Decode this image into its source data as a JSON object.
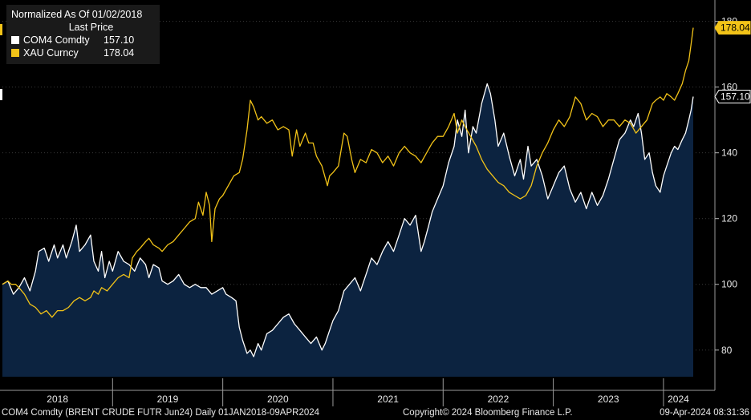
{
  "chart_data": {
    "type": "line",
    "title": "Normalized As Of 01/02/2018",
    "legend_header": "Last Price",
    "legend_position": "top-left",
    "y_axis": {
      "side": "right",
      "ticks": [
        80,
        100,
        120,
        140,
        160,
        180
      ],
      "range": [
        68,
        186
      ]
    },
    "x_axis": {
      "labels": [
        "2018",
        "2019",
        "2020",
        "2021",
        "2022",
        "2023",
        "2024"
      ],
      "range": [
        2018.0,
        2024.27
      ]
    },
    "series": [
      {
        "name": "COM4 Comdty",
        "last": "157.10",
        "color": "#ffffff",
        "fill": "#0c2340",
        "points": [
          [
            2018.0,
            100
          ],
          [
            2018.05,
            101
          ],
          [
            2018.1,
            97
          ],
          [
            2018.15,
            99
          ],
          [
            2018.2,
            102
          ],
          [
            2018.25,
            98
          ],
          [
            2018.3,
            104
          ],
          [
            2018.33,
            110
          ],
          [
            2018.38,
            111
          ],
          [
            2018.42,
            107
          ],
          [
            2018.47,
            112
          ],
          [
            2018.5,
            108
          ],
          [
            2018.55,
            112
          ],
          [
            2018.58,
            108
          ],
          [
            2018.63,
            113
          ],
          [
            2018.67,
            118
          ],
          [
            2018.7,
            110
          ],
          [
            2018.75,
            112
          ],
          [
            2018.8,
            115
          ],
          [
            2018.83,
            107
          ],
          [
            2018.87,
            104
          ],
          [
            2018.9,
            110
          ],
          [
            2018.93,
            102
          ],
          [
            2018.97,
            107
          ],
          [
            2019.0,
            104
          ],
          [
            2019.05,
            110
          ],
          [
            2019.1,
            107
          ],
          [
            2019.15,
            106
          ],
          [
            2019.2,
            104
          ],
          [
            2019.25,
            108
          ],
          [
            2019.3,
            106
          ],
          [
            2019.33,
            102
          ],
          [
            2019.37,
            106
          ],
          [
            2019.42,
            105
          ],
          [
            2019.45,
            101
          ],
          [
            2019.5,
            100
          ],
          [
            2019.55,
            101
          ],
          [
            2019.6,
            103
          ],
          [
            2019.65,
            100
          ],
          [
            2019.7,
            99
          ],
          [
            2019.75,
            100
          ],
          [
            2019.8,
            99
          ],
          [
            2019.85,
            99
          ],
          [
            2019.9,
            97
          ],
          [
            2019.95,
            98
          ],
          [
            2020.0,
            99
          ],
          [
            2020.03,
            97
          ],
          [
            2020.08,
            96
          ],
          [
            2020.12,
            95
          ],
          [
            2020.15,
            87
          ],
          [
            2020.18,
            83
          ],
          [
            2020.22,
            79
          ],
          [
            2020.25,
            80
          ],
          [
            2020.28,
            78
          ],
          [
            2020.32,
            82
          ],
          [
            2020.35,
            80
          ],
          [
            2020.4,
            85
          ],
          [
            2020.45,
            86
          ],
          [
            2020.5,
            88
          ],
          [
            2020.55,
            90
          ],
          [
            2020.6,
            91
          ],
          [
            2020.65,
            88
          ],
          [
            2020.7,
            86
          ],
          [
            2020.75,
            84
          ],
          [
            2020.8,
            82
          ],
          [
            2020.85,
            84
          ],
          [
            2020.9,
            80
          ],
          [
            2020.93,
            82
          ],
          [
            2020.97,
            86
          ],
          [
            2021.0,
            89
          ],
          [
            2021.05,
            92
          ],
          [
            2021.1,
            98
          ],
          [
            2021.15,
            100
          ],
          [
            2021.2,
            102
          ],
          [
            2021.25,
            98
          ],
          [
            2021.3,
            103
          ],
          [
            2021.35,
            108
          ],
          [
            2021.4,
            106
          ],
          [
            2021.45,
            110
          ],
          [
            2021.5,
            113
          ],
          [
            2021.55,
            110
          ],
          [
            2021.6,
            115
          ],
          [
            2021.65,
            120
          ],
          [
            2021.7,
            118
          ],
          [
            2021.75,
            121
          ],
          [
            2021.8,
            110
          ],
          [
            2021.83,
            113
          ],
          [
            2021.87,
            118
          ],
          [
            2021.9,
            122
          ],
          [
            2021.95,
            126
          ],
          [
            2022.0,
            130
          ],
          [
            2022.05,
            137
          ],
          [
            2022.1,
            142
          ],
          [
            2022.13,
            150
          ],
          [
            2022.17,
            145
          ],
          [
            2022.2,
            153
          ],
          [
            2022.23,
            140
          ],
          [
            2022.27,
            148
          ],
          [
            2022.3,
            146
          ],
          [
            2022.35,
            155
          ],
          [
            2022.4,
            161
          ],
          [
            2022.43,
            158
          ],
          [
            2022.47,
            150
          ],
          [
            2022.5,
            142
          ],
          [
            2022.55,
            146
          ],
          [
            2022.6,
            139
          ],
          [
            2022.65,
            133
          ],
          [
            2022.7,
            138
          ],
          [
            2022.73,
            132
          ],
          [
            2022.77,
            142
          ],
          [
            2022.8,
            136
          ],
          [
            2022.85,
            138
          ],
          [
            2022.9,
            133
          ],
          [
            2022.95,
            126
          ],
          [
            2023.0,
            130
          ],
          [
            2023.05,
            134
          ],
          [
            2023.1,
            136
          ],
          [
            2023.15,
            129
          ],
          [
            2023.2,
            125
          ],
          [
            2023.25,
            128
          ],
          [
            2023.3,
            123
          ],
          [
            2023.35,
            128
          ],
          [
            2023.4,
            124
          ],
          [
            2023.45,
            127
          ],
          [
            2023.5,
            132
          ],
          [
            2023.55,
            138
          ],
          [
            2023.6,
            144
          ],
          [
            2023.65,
            146
          ],
          [
            2023.7,
            150
          ],
          [
            2023.73,
            148
          ],
          [
            2023.77,
            152
          ],
          [
            2023.8,
            146
          ],
          [
            2023.83,
            138
          ],
          [
            2023.87,
            140
          ],
          [
            2023.9,
            134
          ],
          [
            2023.93,
            130
          ],
          [
            2023.97,
            128
          ],
          [
            2024.0,
            133
          ],
          [
            2024.03,
            136
          ],
          [
            2024.07,
            140
          ],
          [
            2024.1,
            142
          ],
          [
            2024.13,
            141
          ],
          [
            2024.17,
            144
          ],
          [
            2024.2,
            146
          ],
          [
            2024.23,
            150
          ],
          [
            2024.25,
            153
          ],
          [
            2024.27,
            157.1
          ]
        ]
      },
      {
        "name": "XAU Curncy",
        "last": "178.04",
        "color": "#f2c318",
        "points": [
          [
            2018.0,
            100
          ],
          [
            2018.05,
            101
          ],
          [
            2018.08,
            100
          ],
          [
            2018.12,
            100
          ],
          [
            2018.15,
            99
          ],
          [
            2018.2,
            97
          ],
          [
            2018.25,
            94
          ],
          [
            2018.3,
            93
          ],
          [
            2018.35,
            91
          ],
          [
            2018.4,
            92
          ],
          [
            2018.45,
            90
          ],
          [
            2018.5,
            92
          ],
          [
            2018.55,
            92
          ],
          [
            2018.6,
            93
          ],
          [
            2018.65,
            95
          ],
          [
            2018.7,
            96
          ],
          [
            2018.75,
            95
          ],
          [
            2018.8,
            96
          ],
          [
            2018.83,
            98
          ],
          [
            2018.87,
            97
          ],
          [
            2018.9,
            99
          ],
          [
            2018.95,
            98
          ],
          [
            2019.0,
            100
          ],
          [
            2019.05,
            102
          ],
          [
            2019.1,
            103
          ],
          [
            2019.15,
            102
          ],
          [
            2019.18,
            108
          ],
          [
            2019.22,
            110
          ],
          [
            2019.25,
            111
          ],
          [
            2019.3,
            113
          ],
          [
            2019.33,
            114
          ],
          [
            2019.37,
            112
          ],
          [
            2019.42,
            111
          ],
          [
            2019.45,
            110
          ],
          [
            2019.5,
            112
          ],
          [
            2019.55,
            113
          ],
          [
            2019.6,
            115
          ],
          [
            2019.65,
            117
          ],
          [
            2019.7,
            119
          ],
          [
            2019.75,
            120
          ],
          [
            2019.78,
            125
          ],
          [
            2019.82,
            121
          ],
          [
            2019.85,
            128
          ],
          [
            2019.88,
            124
          ],
          [
            2019.9,
            113
          ],
          [
            2019.93,
            123
          ],
          [
            2019.97,
            126
          ],
          [
            2020.0,
            127
          ],
          [
            2020.05,
            130
          ],
          [
            2020.1,
            133
          ],
          [
            2020.15,
            134
          ],
          [
            2020.18,
            138
          ],
          [
            2020.22,
            147
          ],
          [
            2020.25,
            156
          ],
          [
            2020.28,
            154
          ],
          [
            2020.32,
            150
          ],
          [
            2020.35,
            151
          ],
          [
            2020.4,
            149
          ],
          [
            2020.45,
            150
          ],
          [
            2020.5,
            147
          ],
          [
            2020.55,
            148
          ],
          [
            2020.6,
            147
          ],
          [
            2020.63,
            139
          ],
          [
            2020.67,
            147
          ],
          [
            2020.7,
            142
          ],
          [
            2020.75,
            146
          ],
          [
            2020.78,
            143
          ],
          [
            2020.82,
            143
          ],
          [
            2020.85,
            139
          ],
          [
            2020.9,
            136
          ],
          [
            2020.95,
            130
          ],
          [
            2020.97,
            133
          ],
          [
            2021.0,
            134
          ],
          [
            2021.05,
            136
          ],
          [
            2021.1,
            146
          ],
          [
            2021.13,
            145
          ],
          [
            2021.17,
            138
          ],
          [
            2021.2,
            134
          ],
          [
            2021.25,
            138
          ],
          [
            2021.3,
            137
          ],
          [
            2021.35,
            141
          ],
          [
            2021.4,
            140
          ],
          [
            2021.45,
            137
          ],
          [
            2021.5,
            139
          ],
          [
            2021.55,
            136
          ],
          [
            2021.6,
            140
          ],
          [
            2021.65,
            142
          ],
          [
            2021.7,
            140
          ],
          [
            2021.75,
            139
          ],
          [
            2021.8,
            137
          ],
          [
            2021.85,
            140
          ],
          [
            2021.9,
            143
          ],
          [
            2021.95,
            145
          ],
          [
            2022.0,
            145
          ],
          [
            2022.05,
            148
          ],
          [
            2022.1,
            152
          ],
          [
            2022.13,
            146
          ],
          [
            2022.17,
            150
          ],
          [
            2022.2,
            148
          ],
          [
            2022.25,
            145
          ],
          [
            2022.3,
            142
          ],
          [
            2022.35,
            138
          ],
          [
            2022.4,
            135
          ],
          [
            2022.45,
            133
          ],
          [
            2022.5,
            131
          ],
          [
            2022.55,
            130
          ],
          [
            2022.6,
            128
          ],
          [
            2022.65,
            127
          ],
          [
            2022.7,
            126
          ],
          [
            2022.75,
            127
          ],
          [
            2022.8,
            130
          ],
          [
            2022.85,
            136
          ],
          [
            2022.9,
            140
          ],
          [
            2022.95,
            143
          ],
          [
            2023.0,
            147
          ],
          [
            2023.05,
            150
          ],
          [
            2023.1,
            148
          ],
          [
            2023.15,
            151
          ],
          [
            2023.2,
            157
          ],
          [
            2023.25,
            155
          ],
          [
            2023.3,
            150
          ],
          [
            2023.35,
            152
          ],
          [
            2023.4,
            151
          ],
          [
            2023.45,
            148
          ],
          [
            2023.5,
            150
          ],
          [
            2023.55,
            150
          ],
          [
            2023.6,
            148
          ],
          [
            2023.65,
            150
          ],
          [
            2023.7,
            149
          ],
          [
            2023.75,
            146
          ],
          [
            2023.8,
            148
          ],
          [
            2023.85,
            150
          ],
          [
            2023.9,
            155
          ],
          [
            2023.93,
            156
          ],
          [
            2023.97,
            157
          ],
          [
            2024.0,
            156
          ],
          [
            2024.03,
            158
          ],
          [
            2024.07,
            157
          ],
          [
            2024.1,
            156
          ],
          [
            2024.13,
            158
          ],
          [
            2024.17,
            161
          ],
          [
            2024.2,
            165
          ],
          [
            2024.23,
            168
          ],
          [
            2024.25,
            173
          ],
          [
            2024.27,
            178.04
          ]
        ]
      }
    ]
  },
  "footer": {
    "left": "COM4 Comdty (BRENT CRUDE FUTR  Jun24)  Daily 01JAN2018-09APR2024",
    "center": "Copyright© 2024 Bloomberg Finance L.P.",
    "right": "09-Apr-2024 08:31:36"
  }
}
